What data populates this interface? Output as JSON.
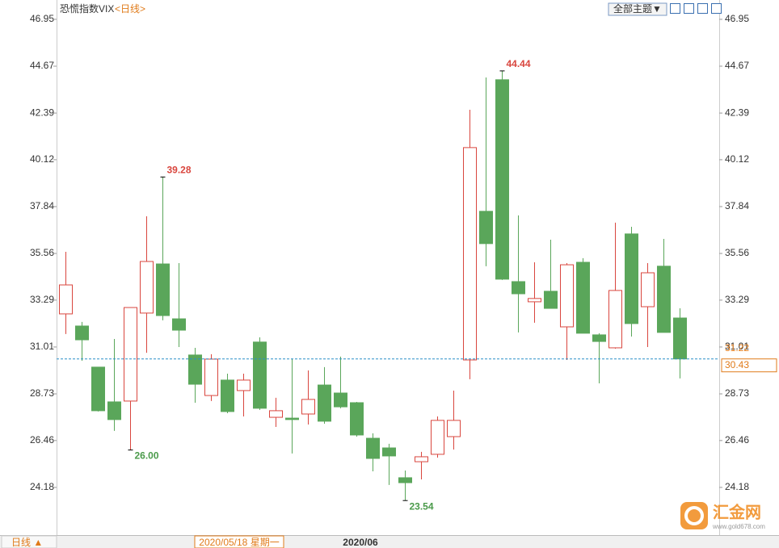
{
  "chart_data": {
    "type": "candlestick",
    "title": "恐慌指数VIX",
    "period_link": "<日线>",
    "theme_button": "全部主题▼",
    "period_button": "日线 ▲",
    "x_axis_labels": [
      "2020/05/18 星期一",
      "2020/06"
    ],
    "watermark": {
      "name": "汇金网",
      "url": "www.gold678.com"
    },
    "ylim": [
      21.86,
      47.89
    ],
    "yticks": [
      46.95,
      44.67,
      42.39,
      40.12,
      37.84,
      35.56,
      33.29,
      31.01,
      28.73,
      26.46,
      24.18
    ],
    "up_color": "#d9463e",
    "down_color": "#5aa65a",
    "open": [
      32.62,
      32.03,
      30.03,
      28.34,
      28.38,
      32.66,
      35.05,
      32.38,
      30.62,
      28.65,
      29.4,
      28.89,
      31.25,
      27.59,
      27.55,
      27.75,
      29.16,
      28.77,
      28.3,
      26.57,
      26.1,
      24.65,
      25.43,
      25.79,
      26.65,
      30.38,
      37.61,
      44.01,
      34.19,
      33.21,
      33.72,
      31.99,
      35.13,
      31.6,
      30.97,
      36.51,
      32.97,
      34.94,
      32.42
    ],
    "high": [
      35.64,
      32.23,
      30.03,
      31.4,
      32.93,
      37.37,
      39.28,
      35.09,
      30.97,
      30.66,
      29.71,
      29.71,
      31.48,
      28.54,
      30.42,
      29.87,
      30.03,
      30.54,
      28.34,
      26.81,
      26.3,
      25.0,
      25.91,
      27.63,
      28.89,
      42.55,
      44.12,
      44.44,
      37.41,
      35.13,
      36.23,
      35.09,
      35.33,
      31.68,
      37.06,
      36.86,
      35.09,
      36.27,
      32.89
    ],
    "low": [
      31.64,
      30.34,
      27.87,
      26.93,
      26.0,
      30.73,
      32.31,
      31.01,
      28.3,
      28.38,
      27.79,
      27.63,
      27.95,
      27.12,
      25.83,
      27.24,
      27.28,
      28.03,
      26.65,
      24.96,
      24.3,
      23.54,
      24.57,
      25.63,
      26.02,
      29.44,
      34.94,
      34.27,
      31.72,
      32.19,
      32.89,
      30.38,
      31.68,
      29.24,
      30.93,
      31.52,
      31.01,
      31.72,
      29.48
    ],
    "close": [
      34.03,
      31.36,
      27.91,
      27.48,
      32.93,
      35.17,
      32.54,
      31.83,
      29.2,
      30.42,
      27.87,
      29.4,
      28.03,
      27.91,
      27.48,
      28.46,
      27.4,
      28.1,
      26.73,
      25.59,
      25.71,
      24.41,
      25.67,
      27.44,
      27.44,
      40.71,
      36.04,
      34.31,
      33.6,
      33.37,
      32.89,
      35.01,
      31.68,
      31.28,
      33.76,
      32.15,
      34.62,
      31.72,
      30.43
    ],
    "annotations": [
      {
        "label": "39.28",
        "value": 39.28,
        "kind": "high"
      },
      {
        "label": "26.00",
        "value": 26,
        "kind": "low"
      },
      {
        "label": "23.54",
        "value": 23.54,
        "kind": "low"
      },
      {
        "label": "44.44",
        "value": 44.44,
        "kind": "high"
      }
    ],
    "ref_price": 31.22,
    "last_price": 30.43
  }
}
